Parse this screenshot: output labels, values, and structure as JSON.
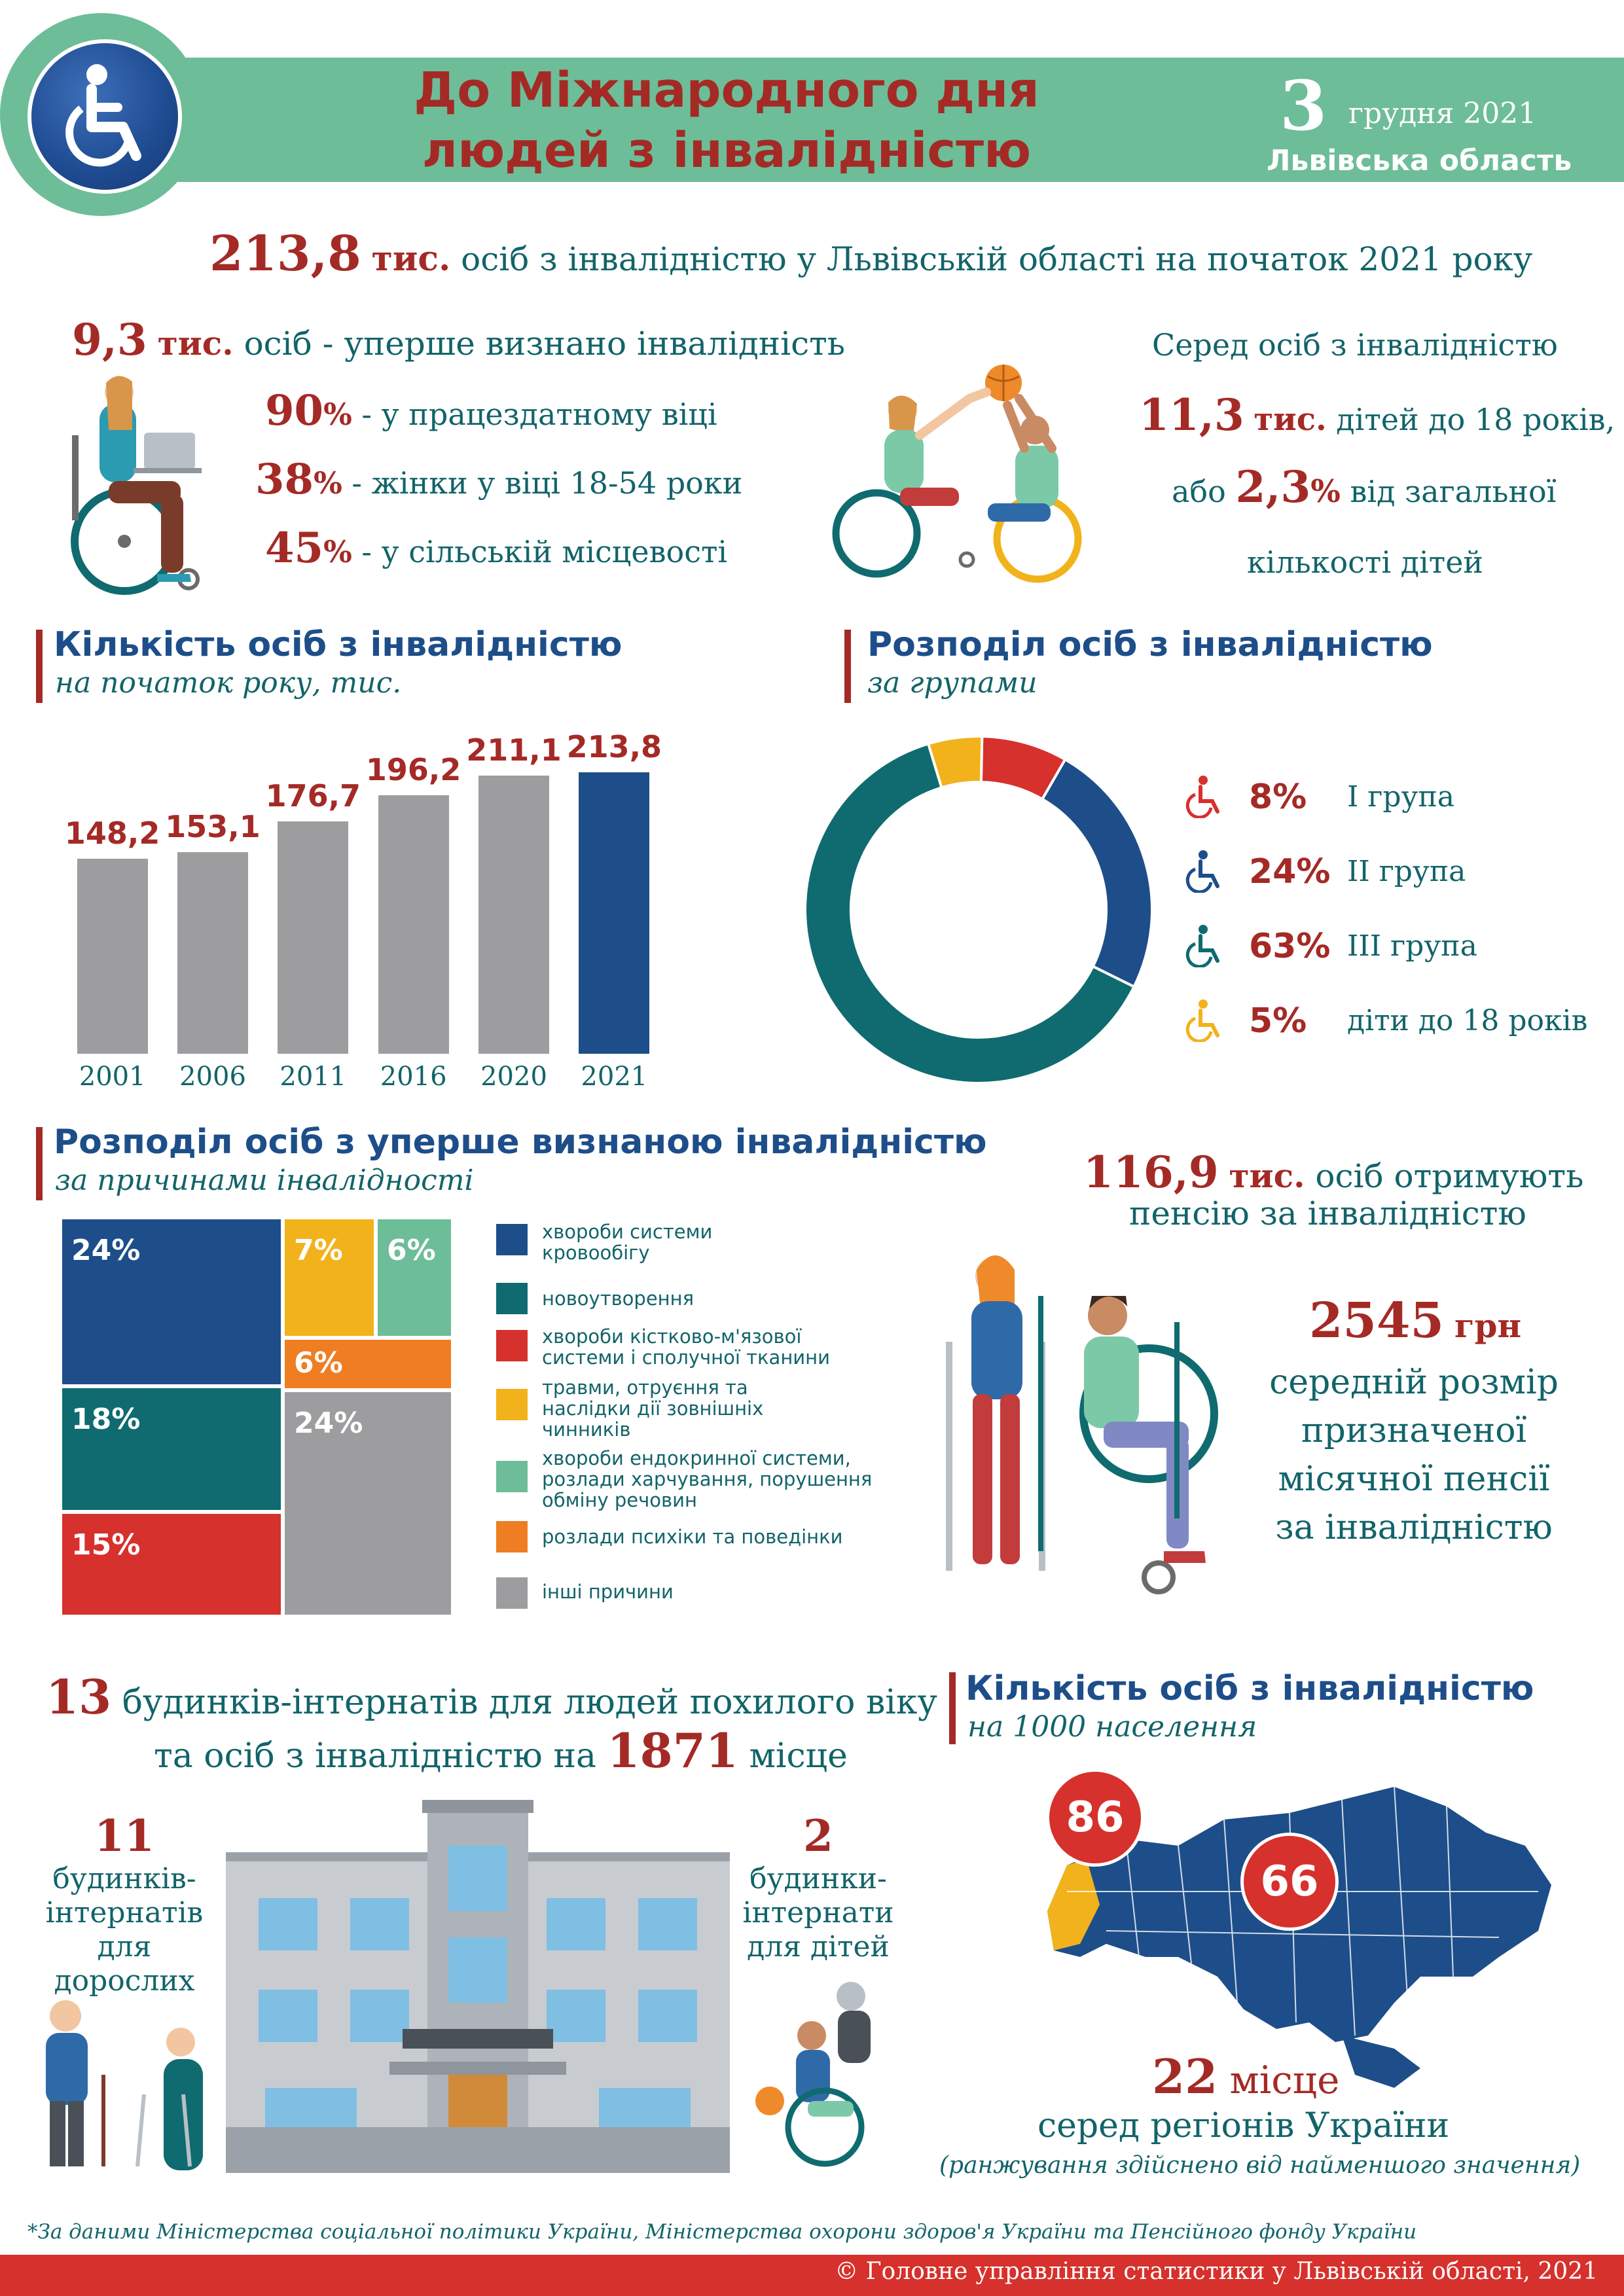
{
  "header": {
    "title_line1": "До Міжнародного дня",
    "title_line2": "людей з інвалідністю",
    "date_day": "3",
    "date_month_year": "грудня 2021",
    "region": "Львівська область"
  },
  "headline": {
    "value": "213,8",
    "unit": "тис.",
    "text": "осіб з інвалідністю у Львівській області на початок 2021 року"
  },
  "first_time": {
    "value": "9,3",
    "unit": "тис.",
    "text": "осіб - уперше визнано інвалідність",
    "stats": [
      {
        "value": "90",
        "pct": "%",
        "text": "- у працездатному віці"
      },
      {
        "value": "38",
        "pct": "%",
        "text": "- жінки у віці 18-54 роки"
      },
      {
        "value": "45",
        "pct": "%",
        "text": "- у сільській місцевості"
      }
    ]
  },
  "children": {
    "intro": "Серед осіб з інвалідністю",
    "value": "11,3",
    "unit": "тис.",
    "text": "дітей до 18 років,",
    "pre2": "або",
    "value2": "2,3",
    "pct2": "%",
    "text2": "від загальної",
    "text3": "кількості дітей"
  },
  "bar_section": {
    "title": "Кількість осіб з інвалідністю",
    "subtitle": "на початок року, тис."
  },
  "donut_section": {
    "title": "Розподіл осіб з інвалідністю",
    "subtitle": "за групами"
  },
  "causes_section": {
    "title": "Розподіл осіб з уперше визнаною інвалідністю",
    "subtitle": "за причинами інвалідності"
  },
  "pension": {
    "value": "116,9",
    "unit": "тис.",
    "text1": "осіб отримують",
    "text2": "пенсію за  інвалідністю",
    "amount": "2545",
    "currency": "грн",
    "line1": "середній розмір",
    "line2": "призначеної",
    "line3": "місячної пенсії",
    "line4": "за  інвалідністю"
  },
  "homes": {
    "count": "13",
    "text1": "будинків-інтернатів для людей похилого віку",
    "text2": "та осіб з інвалідністю на",
    "places": "1871",
    "text3": "місце",
    "adults_count": "11",
    "adults_l1": "будинків-",
    "adults_l2": "інтернатів",
    "adults_l3": "для дорослих",
    "kids_count": "2",
    "kids_l1": "будинки-",
    "kids_l2": "інтернати",
    "kids_l3": "для дітей"
  },
  "map_section": {
    "title": "Кількість осіб з інвалідністю",
    "subtitle": "на 1000 населення",
    "badge_region": "86",
    "badge_country": "66",
    "rank": "22",
    "rank_unit": "місце",
    "rank_text": "серед регіонів України",
    "rank_note": "(ранжування здійснено від найменшого значення)"
  },
  "source_note": "*За даними Міністерства соціальної політики України, Міністерства охорони здоров'я України та Пенсійного фонду України",
  "footer": "© Головне управління статистики у Львівській області, 2021",
  "colors": {
    "green": "#6dbd98",
    "red": "#a42a26",
    "blue": "#1d4e89",
    "teal": "#126469",
    "gray": "#9d9d9f"
  },
  "chart_data": [
    {
      "type": "bar",
      "categories": [
        "2001",
        "2006",
        "2011",
        "2016",
        "2020",
        "2021"
      ],
      "values": [
        148.2,
        153.1,
        176.7,
        196.2,
        211.1,
        213.8
      ],
      "labels": [
        "148,2",
        "153,1",
        "176,7",
        "196,2",
        "211,1",
        "213,8"
      ],
      "highlight_index": 5,
      "ylim": [
        0,
        213.8
      ]
    },
    {
      "type": "pie",
      "donut": true,
      "series": [
        {
          "name": "І група",
          "value": 8,
          "label": "8%",
          "color": "#d6312c"
        },
        {
          "name": "ІІ група",
          "value": 24,
          "label": "24%",
          "color": "#1d4e89"
        },
        {
          "name": "ІІІ група",
          "value": 63,
          "label": "63%",
          "color": "#0f6b6f"
        },
        {
          "name": "діти до 18 років",
          "value": 5,
          "label": "5%",
          "color": "#f2b21b"
        }
      ]
    },
    {
      "type": "treemap",
      "series": [
        {
          "name": "хвороби системи кровообігу",
          "value": 24,
          "label": "24%",
          "color": "#1d4e89"
        },
        {
          "name": "новоутворення",
          "value": 18,
          "label": "18%",
          "color": "#0f6b6f"
        },
        {
          "name": "хвороби кістково-м'язової системи і сполучної тканини",
          "value": 15,
          "label": "15%",
          "color": "#d6312c"
        },
        {
          "name": "травми, отруєння та наслідки дії зовнішніх чинників",
          "value": 7,
          "label": "7%",
          "color": "#f2b21b"
        },
        {
          "name": "хвороби ендокринної системи, розлади харчування, порушення обміну речовин",
          "value": 6,
          "label": "6%",
          "color": "#6dbd98"
        },
        {
          "name": "розлади психіки та поведінки",
          "value": 6,
          "label": "6%",
          "color": "#ef7d22"
        },
        {
          "name": "інші причини",
          "value": 24,
          "label": "24%",
          "color": "#9d9d9f"
        }
      ]
    }
  ]
}
